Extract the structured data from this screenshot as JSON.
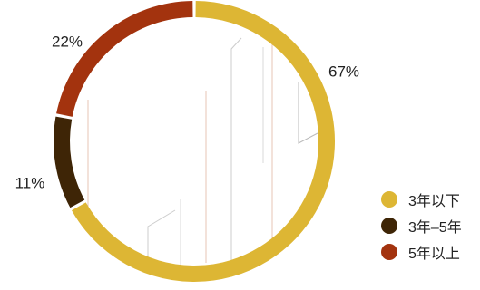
{
  "chart_data": {
    "type": "pie",
    "style": "donut",
    "categories": [
      "3年以下",
      "3年–5年",
      "5年以上"
    ],
    "values": [
      67,
      11,
      22
    ],
    "labels": [
      "67%",
      "11%",
      "22%"
    ],
    "colors": [
      "#DDB634",
      "#3E2506",
      "#A3330E"
    ],
    "legend_position": "right",
    "title": "",
    "start_angle": "top",
    "direction": "clockwise"
  }
}
